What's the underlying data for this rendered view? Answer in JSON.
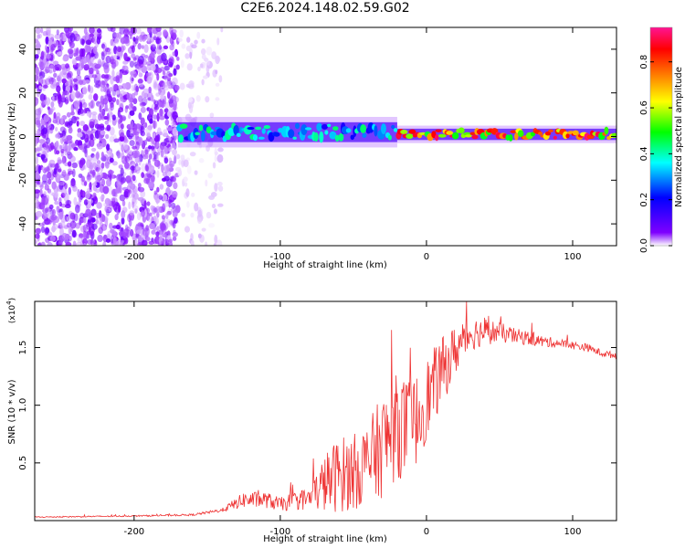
{
  "title": "C2E6.2024.148.02.59.G02",
  "chart_data": [
    {
      "type": "heatmap",
      "xlabel": "Height of straight line (km)",
      "ylabel": "Frequency (Hz)",
      "xlim": [
        -268,
        130
      ],
      "ylim": [
        -50,
        50
      ],
      "xticks": [
        -200,
        -100,
        0,
        100
      ],
      "yticks": [
        -40,
        -20,
        0,
        20,
        40
      ],
      "colorbar": {
        "label": "Normalized spectral amplitude",
        "range": [
          0,
          0.95
        ],
        "ticks": [
          "0.0",
          "0.2",
          "0.4",
          "0.6",
          "0.8"
        ],
        "colormap": [
          "#ffffff",
          "#7f00ff",
          "#0000ff",
          "#00ffff",
          "#00ff00",
          "#ffff00",
          "#ff7f00",
          "#ff0000",
          "#ff1493"
        ]
      },
      "regions": [
        {
          "x": [
            -268,
            -170
          ],
          "description": "noise",
          "amplitude": 0.1
        },
        {
          "x": [
            -170,
            -140
          ],
          "description": "faint noise",
          "amplitude": 0.03
        },
        {
          "x": [
            -170,
            -20
          ],
          "freq_center": 2,
          "freq_halfwidth": 7,
          "amplitude": 0.4
        },
        {
          "x": [
            -20,
            130
          ],
          "freq_center": 1,
          "freq_halfwidth": 4,
          "amplitude": 0.85
        }
      ]
    },
    {
      "type": "line",
      "xlabel": "Height of straight line (km)",
      "ylabel": "SNR (10 * v/v)",
      "exponent_label": "(x10",
      "exponent_sup": "4",
      "exponent_close": ")",
      "xlim": [
        -268,
        130
      ],
      "ylim": [
        0,
        19000
      ],
      "xticks": [
        -200,
        -100,
        0,
        100
      ],
      "yticks": [
        "0.5",
        "1.0",
        "1.5"
      ],
      "line_color": "#ee3333",
      "series": [
        {
          "x": [
            -268,
            -200,
            -160,
            -140,
            -125,
            -110,
            -100,
            -90,
            -80,
            -70,
            -60,
            -50,
            -40,
            -30,
            -20,
            -10,
            0,
            10,
            20,
            30,
            40,
            50,
            60,
            70,
            80,
            90,
            100,
            110,
            120,
            130
          ],
          "values": [
            300,
            400,
            500,
            900,
            1800,
            1800,
            1400,
            1700,
            1900,
            3200,
            4000,
            4200,
            5000,
            6500,
            8200,
            8000,
            10500,
            12800,
            14800,
            16200,
            16400,
            16300,
            16000,
            15800,
            15500,
            15400,
            15200,
            15000,
            14500,
            14300
          ],
          "noise": [
            50,
            60,
            80,
            150,
            700,
            700,
            600,
            800,
            1000,
            2500,
            3300,
            3300,
            3600,
            4500,
            4600,
            4200,
            3600,
            3000,
            2200,
            1500,
            1200,
            900,
            700,
            600,
            500,
            400,
            350,
            350,
            300,
            300
          ]
        }
      ]
    }
  ]
}
